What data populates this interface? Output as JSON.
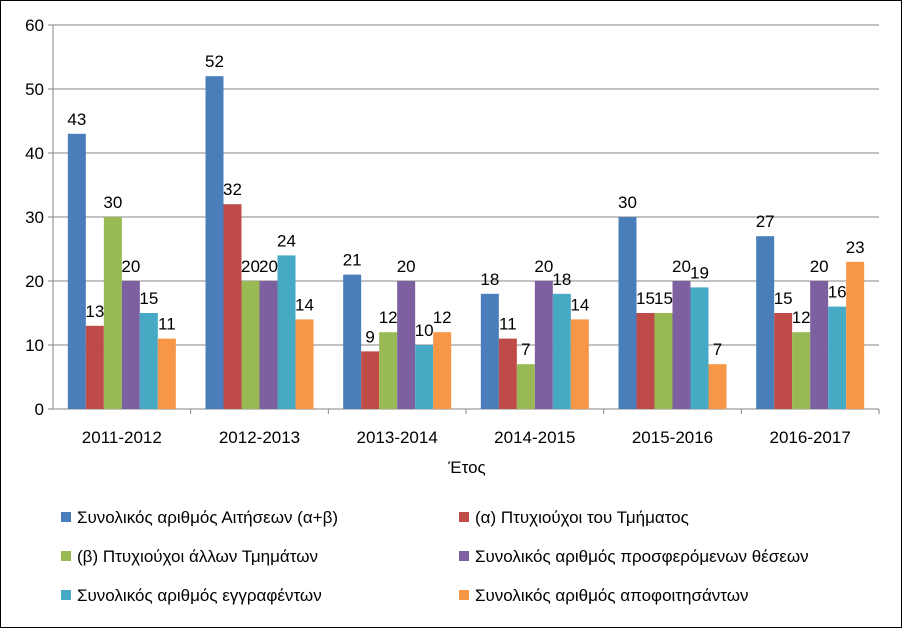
{
  "chart_data": {
    "type": "bar",
    "title": "",
    "xlabel": "Έτος",
    "ylabel": "",
    "ylim": [
      0,
      60
    ],
    "yticks": [
      0,
      10,
      20,
      30,
      40,
      50,
      60
    ],
    "grid": true,
    "legend_position": "bottom",
    "categories": [
      "2011-2012",
      "2012-2013",
      "2013-2014",
      "2014-2015",
      "2015-2016",
      "2016-2017"
    ],
    "series": [
      {
        "name": "Συνολικός αριθμός Αιτήσεων (α+β)",
        "color": "#4A7EBB",
        "values": [
          43,
          52,
          21,
          18,
          30,
          27
        ]
      },
      {
        "name": "(α) Πτυχιούχοι του Τμήματος",
        "color": "#BE4B48",
        "values": [
          13,
          32,
          9,
          11,
          15,
          15
        ]
      },
      {
        "name": "(β) Πτυχιούχοι άλλων Τμημάτων",
        "color": "#98B954",
        "values": [
          30,
          20,
          12,
          7,
          15,
          12
        ]
      },
      {
        "name": "Συνολικός αριθμός προσφερόμενων θέσεων",
        "color": "#7D60A0",
        "values": [
          20,
          20,
          20,
          20,
          20,
          20
        ]
      },
      {
        "name": "Συνολικός αριθμός εγγραφέντων",
        "color": "#46AAC5",
        "values": [
          15,
          24,
          10,
          18,
          19,
          16
        ]
      },
      {
        "name": "Συνολικός αριθμός αποφοιτησάντων",
        "color": "#F79646",
        "values": [
          11,
          14,
          12,
          14,
          7,
          23
        ]
      }
    ]
  }
}
